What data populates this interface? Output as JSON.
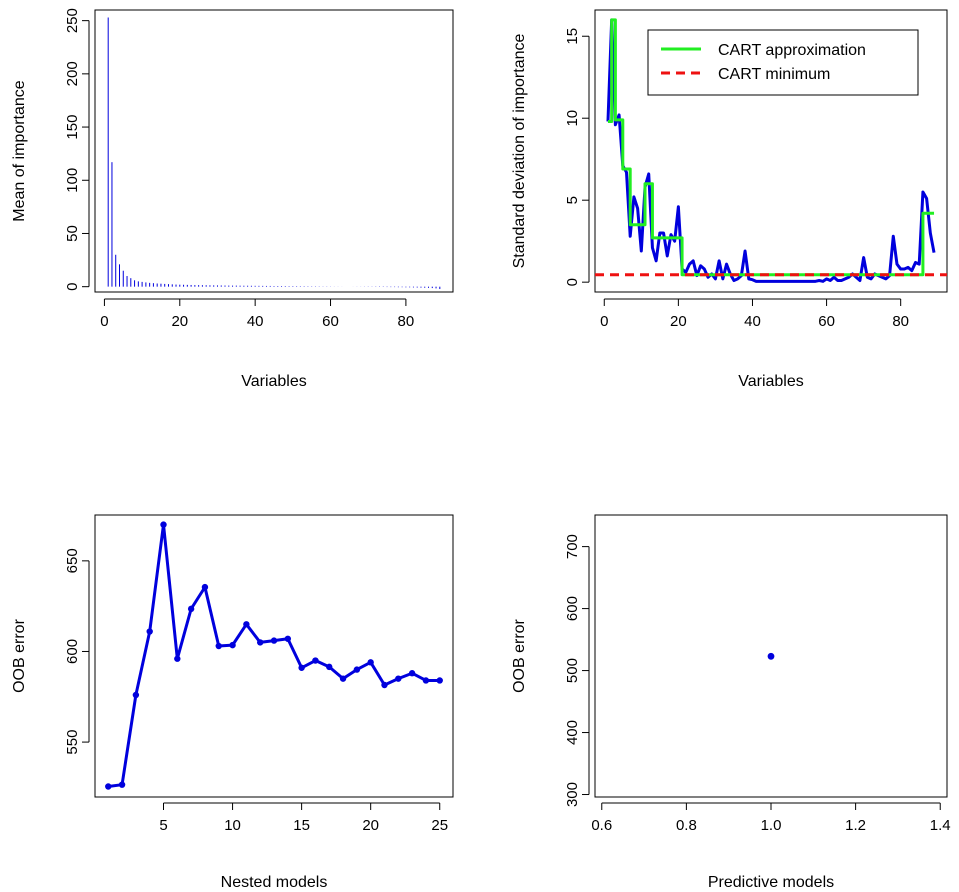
{
  "colors": {
    "series_blue": "#0000dd",
    "cart_approx_green": "#22ee22",
    "cart_min_red": "#ee1111"
  },
  "chart_data": [
    {
      "id": "mean-importance",
      "type": "bar",
      "xlabel": "Variables",
      "ylabel": "Mean of importance",
      "xlim": [
        -2.5,
        92.5
      ],
      "ylim": [
        -5,
        260
      ],
      "xticks": [
        0,
        20,
        40,
        60,
        80
      ],
      "xtick_labels": [
        "0",
        "20",
        "40",
        "60",
        "80"
      ],
      "yticks": [
        0,
        50,
        100,
        150,
        200,
        250
      ],
      "ytick_labels": [
        "0",
        "50",
        "100",
        "150",
        "200",
        "250"
      ],
      "x": [
        1,
        2,
        3,
        4,
        5,
        6,
        7,
        8,
        9,
        10,
        11,
        12,
        13,
        14,
        15,
        16,
        17,
        18,
        19,
        20,
        21,
        22,
        23,
        24,
        25,
        26,
        27,
        28,
        29,
        30,
        31,
        32,
        33,
        34,
        35,
        36,
        37,
        38,
        39,
        40,
        41,
        42,
        43,
        44,
        45,
        46,
        47,
        48,
        49,
        50,
        51,
        52,
        53,
        54,
        55,
        56,
        57,
        58,
        59,
        60,
        61,
        62,
        63,
        64,
        65,
        66,
        67,
        68,
        69,
        70,
        71,
        72,
        73,
        74,
        75,
        76,
        77,
        78,
        79,
        80,
        81,
        82,
        83,
        84,
        85,
        86,
        87,
        88,
        89
      ],
      "values": [
        253,
        117,
        30,
        21,
        15,
        10,
        8,
        6,
        5,
        4.5,
        4,
        3.6,
        3.3,
        3.0,
        2.8,
        2.6,
        2.4,
        2.2,
        2.0,
        1.9,
        1.8,
        1.7,
        1.6,
        1.5,
        1.45,
        1.4,
        1.35,
        1.3,
        1.25,
        1.2,
        1.15,
        1.1,
        1.05,
        1.0,
        1.0,
        0.95,
        0.9,
        0.9,
        0.85,
        0.8,
        0.8,
        0.75,
        0.7,
        0.7,
        0.65,
        0.6,
        0.6,
        0.55,
        0.5,
        0.5,
        0.45,
        0.4,
        0.4,
        0.35,
        0.3,
        0.3,
        0.25,
        0.2,
        0.2,
        0.15,
        0.1,
        0.1,
        0.05,
        0.0,
        0.0,
        -0.05,
        -0.1,
        -0.1,
        -0.15,
        -0.2,
        -0.2,
        -0.25,
        -0.3,
        -0.3,
        -0.35,
        -0.4,
        -0.4,
        -0.5,
        -0.5,
        -0.6,
        -0.6,
        -0.7,
        -0.8,
        -0.9,
        -1.0,
        -1.1,
        -1.3,
        -1.6,
        -2.2
      ]
    },
    {
      "id": "sd-importance",
      "type": "line",
      "xlabel": "Variables",
      "ylabel": "Standard deviation of importance",
      "xlim": [
        -2.5,
        92.5
      ],
      "ylim": [
        -0.6,
        16.6
      ],
      "xticks": [
        0,
        20,
        40,
        60,
        80
      ],
      "xtick_labels": [
        "0",
        "20",
        "40",
        "60",
        "80"
      ],
      "yticks": [
        0,
        5,
        10,
        15
      ],
      "ytick_labels": [
        "0",
        "5",
        "10",
        "15"
      ],
      "legend_position": "top-right",
      "series": [
        {
          "name": "",
          "style": "solid",
          "color": "#0000dd",
          "x": [
            1,
            2,
            3,
            4,
            5,
            6,
            7,
            8,
            9,
            10,
            11,
            12,
            13,
            14,
            15,
            16,
            17,
            18,
            19,
            20,
            21,
            22,
            23,
            24,
            25,
            26,
            27,
            28,
            29,
            30,
            31,
            32,
            33,
            34,
            35,
            36,
            37,
            38,
            39,
            40,
            41,
            42,
            43,
            44,
            45,
            46,
            47,
            48,
            49,
            50,
            51,
            52,
            53,
            54,
            55,
            56,
            57,
            58,
            59,
            60,
            61,
            62,
            63,
            64,
            65,
            66,
            67,
            68,
            69,
            70,
            71,
            72,
            73,
            74,
            75,
            76,
            77,
            78,
            79,
            80,
            81,
            82,
            83,
            84,
            85,
            86,
            87,
            88,
            89
          ],
          "values": [
            9.8,
            16.0,
            9.6,
            10.2,
            7.1,
            6.7,
            2.8,
            5.2,
            4.5,
            1.9,
            5.8,
            6.6,
            2.1,
            1.3,
            3.0,
            3.0,
            1.6,
            2.9,
            2.5,
            4.6,
            0.8,
            0.6,
            1.1,
            1.3,
            0.4,
            1.0,
            0.8,
            0.3,
            0.5,
            0.2,
            1.3,
            0.2,
            1.1,
            0.5,
            0.1,
            0.2,
            0.4,
            1.9,
            0.2,
            0.15,
            0.05,
            0.05,
            0.05,
            0.05,
            0.05,
            0.05,
            0.05,
            0.05,
            0.05,
            0.05,
            0.05,
            0.05,
            0.05,
            0.05,
            0.05,
            0.05,
            0.05,
            0.1,
            0.05,
            0.2,
            0.1,
            0.3,
            0.1,
            0.1,
            0.2,
            0.3,
            0.5,
            0.3,
            0.1,
            1.5,
            0.3,
            0.2,
            0.5,
            0.4,
            0.3,
            0.2,
            0.4,
            2.8,
            1.1,
            0.8,
            0.8,
            0.9,
            0.7,
            1.2,
            1.1,
            5.5,
            5.1,
            3.0,
            1.8
          ]
        },
        {
          "name": "CART approximation",
          "style": "step",
          "color": "#22ee22",
          "x": [
            1,
            2,
            3,
            4,
            5,
            6,
            7,
            8,
            9,
            10,
            11,
            12,
            13,
            14,
            15,
            16,
            17,
            18,
            19,
            20,
            21,
            22,
            23,
            24,
            25,
            26,
            27,
            28,
            29,
            30,
            31,
            32,
            33,
            34,
            35,
            36,
            37,
            38,
            39,
            40,
            41,
            42,
            43,
            44,
            45,
            46,
            47,
            48,
            49,
            50,
            51,
            52,
            53,
            54,
            55,
            56,
            57,
            58,
            59,
            60,
            61,
            62,
            63,
            64,
            65,
            66,
            67,
            68,
            69,
            70,
            71,
            72,
            73,
            74,
            75,
            76,
            77,
            78,
            79,
            80,
            81,
            82,
            83,
            84,
            85,
            86,
            87,
            88,
            89
          ],
          "values": [
            9.8,
            16.0,
            9.9,
            9.9,
            6.9,
            6.9,
            3.5,
            3.5,
            3.5,
            3.5,
            6.0,
            6.0,
            2.7,
            2.7,
            2.7,
            2.7,
            2.7,
            2.7,
            2.7,
            2.7,
            0.45,
            0.45,
            0.45,
            0.45,
            0.45,
            0.45,
            0.45,
            0.45,
            0.45,
            0.45,
            0.45,
            0.45,
            0.45,
            0.45,
            0.45,
            0.45,
            0.45,
            0.45,
            0.45,
            0.45,
            0.45,
            0.45,
            0.45,
            0.45,
            0.45,
            0.45,
            0.45,
            0.45,
            0.45,
            0.45,
            0.45,
            0.45,
            0.45,
            0.45,
            0.45,
            0.45,
            0.45,
            0.45,
            0.45,
            0.45,
            0.45,
            0.45,
            0.45,
            0.45,
            0.45,
            0.45,
            0.45,
            0.45,
            0.45,
            0.45,
            0.45,
            0.45,
            0.45,
            0.45,
            0.45,
            0.45,
            0.45,
            0.45,
            0.45,
            0.45,
            0.45,
            0.45,
            0.45,
            0.45,
            0.45,
            4.2,
            4.2,
            4.2,
            4.2
          ]
        },
        {
          "name": "CART minimum",
          "style": "dashed",
          "color": "#ee1111",
          "hline": 0.45
        }
      ]
    },
    {
      "id": "oob-nested",
      "type": "line",
      "markers": true,
      "xlabel": "Nested models",
      "ylabel": "OOB error",
      "xlim": [
        0.04,
        25.96
      ],
      "ylim": [
        519.7,
        675.3
      ],
      "xticks": [
        5,
        10,
        15,
        20,
        25
      ],
      "xtick_labels": [
        "5",
        "10",
        "15",
        "20",
        "25"
      ],
      "yticks": [
        550,
        600,
        650
      ],
      "ytick_labels": [
        "550",
        "600",
        "650"
      ],
      "series": [
        {
          "name": "",
          "color": "#0000dd",
          "x": [
            1,
            2,
            3,
            4,
            5,
            6,
            7,
            8,
            9,
            10,
            11,
            12,
            13,
            14,
            15,
            16,
            17,
            18,
            19,
            20,
            21,
            22,
            23,
            24,
            25
          ],
          "values": [
            525.5,
            526.5,
            576,
            611,
            670,
            596,
            623.5,
            635.5,
            603,
            603.5,
            615,
            605,
            606,
            607,
            591,
            595,
            591.5,
            585,
            590,
            594,
            581.5,
            585,
            588,
            584,
            584
          ]
        }
      ]
    },
    {
      "id": "oob-predictive",
      "type": "scatter",
      "xlabel": "Predictive models",
      "ylabel": "OOB error",
      "xlim": [
        0.584,
        1.416
      ],
      "ylim": [
        296,
        751
      ],
      "xticks": [
        0.6,
        0.8,
        1.0,
        1.2,
        1.4
      ],
      "xtick_labels": [
        "0.6",
        "0.8",
        "1.0",
        "1.2",
        "1.4"
      ],
      "yticks": [
        300,
        400,
        500,
        600,
        700
      ],
      "ytick_labels": [
        "300",
        "400",
        "500",
        "600",
        "700"
      ],
      "series": [
        {
          "name": "",
          "color": "#0000dd",
          "x": [
            1.0
          ],
          "values": [
            523
          ]
        }
      ]
    }
  ]
}
